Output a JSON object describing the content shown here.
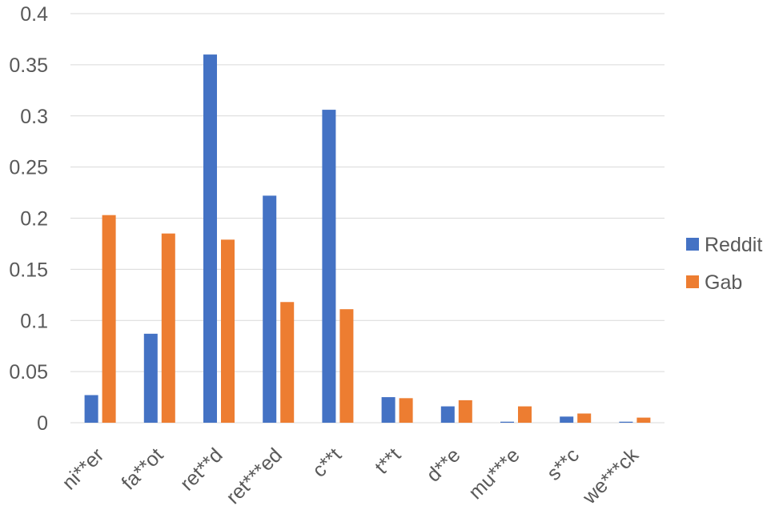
{
  "chart_data": {
    "type": "bar",
    "categories": [
      "ni**er",
      "fa**ot",
      "ret**d",
      "ret***ed",
      "c**t",
      "t**t",
      "d**e",
      "mu***e",
      "s**c",
      "we***ck"
    ],
    "series": [
      {
        "name": "Reddit",
        "color": "#4472C4",
        "values": [
          0.027,
          0.087,
          0.36,
          0.222,
          0.306,
          0.025,
          0.016,
          0.001,
          0.006,
          0.001
        ]
      },
      {
        "name": "Gab",
        "color": "#ED7D31",
        "values": [
          0.203,
          0.185,
          0.179,
          0.118,
          0.111,
          0.024,
          0.022,
          0.016,
          0.009,
          0.005
        ]
      }
    ],
    "yticks": [
      "0",
      "0.05",
      "0.1",
      "0.15",
      "0.2",
      "0.25",
      "0.3",
      "0.35",
      "0.4"
    ],
    "ylim": [
      0,
      0.4
    ],
    "grid": true,
    "legend_position": "right"
  }
}
